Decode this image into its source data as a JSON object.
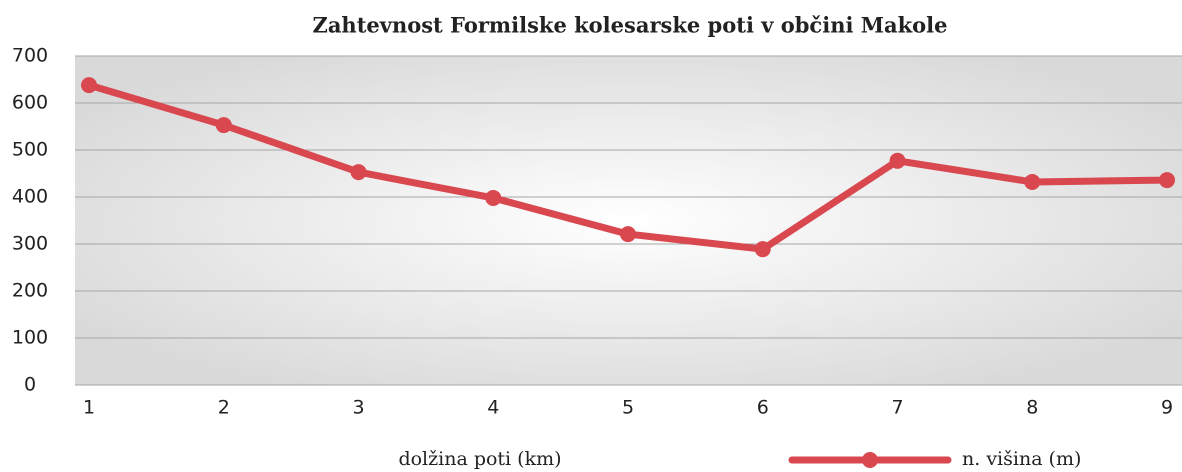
{
  "chart_data": {
    "type": "line",
    "title": "Zahtevnost Formilske kolesarske poti v občini Makole",
    "x_label": "dolžina poti (km)",
    "x": [
      1,
      2,
      3,
      4,
      5,
      6,
      7,
      8,
      9
    ],
    "xlim": [
      1,
      9
    ],
    "xticks": [
      1,
      2,
      3,
      4,
      5,
      6,
      7,
      8,
      9
    ],
    "series": [
      {
        "name": "n. višina (m)",
        "color": "#d9474f",
        "values": [
          638,
          553,
          453,
          398,
          321,
          289,
          477,
          432,
          436
        ]
      }
    ],
    "ylim": [
      0,
      700
    ],
    "yticks": [
      0,
      100,
      200,
      300,
      400,
      500,
      600,
      700
    ],
    "grid": true,
    "legend": "bottom-right"
  }
}
